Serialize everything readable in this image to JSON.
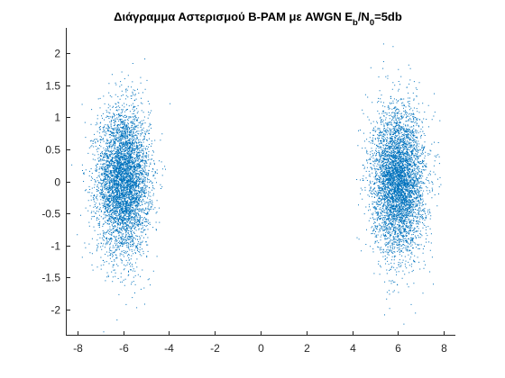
{
  "chart_data": {
    "type": "scatter",
    "title": {
      "main": "Διάγραμμα Αστερισμού B-PAM με AWGN E",
      "sub1": "b",
      "mid": "/N",
      "sub2": "0",
      "tail": "=5db"
    },
    "xlabel": "",
    "ylabel": "",
    "xlim": [
      -8.5,
      8.5
    ],
    "ylim": [
      -2.4,
      2.4
    ],
    "xticks": [
      -8,
      -6,
      -4,
      -2,
      0,
      2,
      4,
      6,
      8
    ],
    "xtick_labels": [
      "-8",
      "-6",
      "-4",
      "-2",
      "0",
      "2",
      "4",
      "6",
      "8"
    ],
    "yticks": [
      2,
      1.5,
      1,
      0.5,
      0,
      -0.5,
      -1,
      -1.5,
      -2
    ],
    "ytick_labels": [
      "2",
      "1.5",
      "1",
      "0.5",
      "0",
      "-0.5",
      "-1",
      "-1.5",
      "-2"
    ],
    "grid": false,
    "box": false,
    "marker_color": "#0072BD",
    "axis_color": "#262626",
    "series": [
      {
        "cluster_centers": [
          -6.0,
          6.0
        ],
        "points_per_cluster": 5000,
        "x_std": 0.56,
        "y_std": 0.56
      }
    ]
  }
}
